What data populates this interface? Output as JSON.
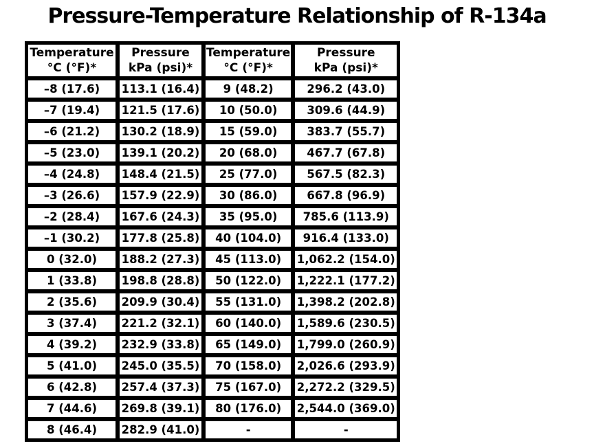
{
  "page": {
    "title": "Pressure-Temperature Relationship of R-134a"
  },
  "table": {
    "headers": [
      {
        "label": "Temperature",
        "unit": "°C (°F)*"
      },
      {
        "label": "Pressure",
        "unit": "kPa (psi)*"
      },
      {
        "label": "Temperature",
        "unit": "°C (°F)*"
      },
      {
        "label": "Pressure",
        "unit": "kPa (psi)*"
      }
    ],
    "rows": [
      [
        "–8 (17.6)",
        "113.1 (16.4)",
        "9 (48.2)",
        "296.2 (43.0)"
      ],
      [
        "–7 (19.4)",
        "121.5 (17.6)",
        "10 (50.0)",
        "309.6 (44.9)"
      ],
      [
        "–6 (21.2)",
        "130.2 (18.9)",
        "15 (59.0)",
        "383.7 (55.7)"
      ],
      [
        "–5 (23.0)",
        "139.1 (20.2)",
        "20 (68.0)",
        "467.7 (67.8)"
      ],
      [
        "–4 (24.8)",
        "148.4 (21.5)",
        "25 (77.0)",
        "567.5 (82.3)"
      ],
      [
        "–3 (26.6)",
        "157.9 (22.9)",
        "30 (86.0)",
        "667.8 (96.9)"
      ],
      [
        "–2 (28.4)",
        "167.6 (24.3)",
        "35 (95.0)",
        "785.6 (113.9)"
      ],
      [
        "–1 (30.2)",
        "177.8 (25.8)",
        "40 (104.0)",
        "916.4 (133.0)"
      ],
      [
        "0 (32.0)",
        "188.2 (27.3)",
        "45 (113.0)",
        "1,062.2 (154.0)"
      ],
      [
        "1 (33.8)",
        "198.8 (28.8)",
        "50 (122.0)",
        "1,222.1 (177.2)"
      ],
      [
        "2 (35.6)",
        "209.9 (30.4)",
        "55 (131.0)",
        "1,398.2 (202.8)"
      ],
      [
        "3 (37.4)",
        "221.2 (32.1)",
        "60 (140.0)",
        "1,589.6 (230.5)"
      ],
      [
        "4 (39.2)",
        "232.9 (33.8)",
        "65 (149.0)",
        "1,799.0 (260.9)"
      ],
      [
        "5 (41.0)",
        "245.0 (35.5)",
        "70 (158.0)",
        "2,026.6 (293.9)"
      ],
      [
        "6 (42.8)",
        "257.4 (37.3)",
        "75 (167.0)",
        "2,272.2 (329.5)"
      ],
      [
        "7 (44.6)",
        "269.8 (39.1)",
        "80 (176.0)",
        "2,544.0 (369.0)"
      ],
      [
        "8 (46.4)",
        "282.9 (41.0)",
        "-",
        "-"
      ]
    ]
  },
  "chart_data": {
    "type": "table",
    "title": "Pressure-Temperature Relationship of R-134a",
    "columns": [
      "Temperature °C (°F)*",
      "Pressure kPa (psi)*",
      "Temperature °C (°F)*",
      "Pressure kPa (psi)*"
    ],
    "rows": [
      [
        "–8 (17.6)",
        "113.1 (16.4)",
        "9 (48.2)",
        "296.2 (43.0)"
      ],
      [
        "–7 (19.4)",
        "121.5 (17.6)",
        "10 (50.0)",
        "309.6 (44.9)"
      ],
      [
        "–6 (21.2)",
        "130.2 (18.9)",
        "15 (59.0)",
        "383.7 (55.7)"
      ],
      [
        "–5 (23.0)",
        "139.1 (20.2)",
        "20 (68.0)",
        "467.7 (67.8)"
      ],
      [
        "–4 (24.8)",
        "148.4 (21.5)",
        "25 (77.0)",
        "567.5 (82.3)"
      ],
      [
        "–3 (26.6)",
        "157.9 (22.9)",
        "30 (86.0)",
        "667.8 (96.9)"
      ],
      [
        "–2 (28.4)",
        "167.6 (24.3)",
        "35 (95.0)",
        "785.6 (113.9)"
      ],
      [
        "–1 (30.2)",
        "177.8 (25.8)",
        "40 (104.0)",
        "916.4 (133.0)"
      ],
      [
        "0 (32.0)",
        "188.2 (27.3)",
        "45 (113.0)",
        "1,062.2 (154.0)"
      ],
      [
        "1 (33.8)",
        "198.8 (28.8)",
        "50 (122.0)",
        "1,222.1 (177.2)"
      ],
      [
        "2 (35.6)",
        "209.9 (30.4)",
        "55 (131.0)",
        "1,398.2 (202.8)"
      ],
      [
        "3 (37.4)",
        "221.2 (32.1)",
        "60 (140.0)",
        "1,589.6 (230.5)"
      ],
      [
        "4 (39.2)",
        "232.9 (33.8)",
        "65 (149.0)",
        "1,799.0 (260.9)"
      ],
      [
        "5 (41.0)",
        "245.0 (35.5)",
        "70 (158.0)",
        "2,026.6 (293.9)"
      ],
      [
        "6 (42.8)",
        "257.4 (37.3)",
        "75 (167.0)",
        "2,272.2 (329.5)"
      ],
      [
        "7 (44.6)",
        "269.8 (39.1)",
        "80 (176.0)",
        "2,544.0 (369.0)"
      ],
      [
        "8 (46.4)",
        "282.9 (41.0)",
        "-",
        "-"
      ]
    ],
    "series": [
      {
        "name": "temperature_c",
        "values": [
          -8,
          -7,
          -6,
          -5,
          -4,
          -3,
          -2,
          -1,
          0,
          1,
          2,
          3,
          4,
          5,
          6,
          7,
          8,
          9,
          10,
          15,
          20,
          25,
          30,
          35,
          40,
          45,
          50,
          55,
          60,
          65,
          70,
          75,
          80
        ]
      },
      {
        "name": "pressure_kpa",
        "values": [
          113.1,
          121.5,
          130.2,
          139.1,
          148.4,
          157.9,
          167.6,
          177.8,
          188.2,
          198.8,
          209.9,
          221.2,
          232.9,
          245.0,
          257.4,
          269.8,
          282.9,
          296.2,
          309.6,
          383.7,
          467.7,
          567.5,
          667.8,
          785.6,
          916.4,
          1062.2,
          1222.1,
          1398.2,
          1589.6,
          1799.0,
          2026.6,
          2272.2,
          2544.0
        ]
      }
    ]
  },
  "colors": {
    "background": "#ffffff",
    "text": "#000000",
    "border": "#000000"
  }
}
